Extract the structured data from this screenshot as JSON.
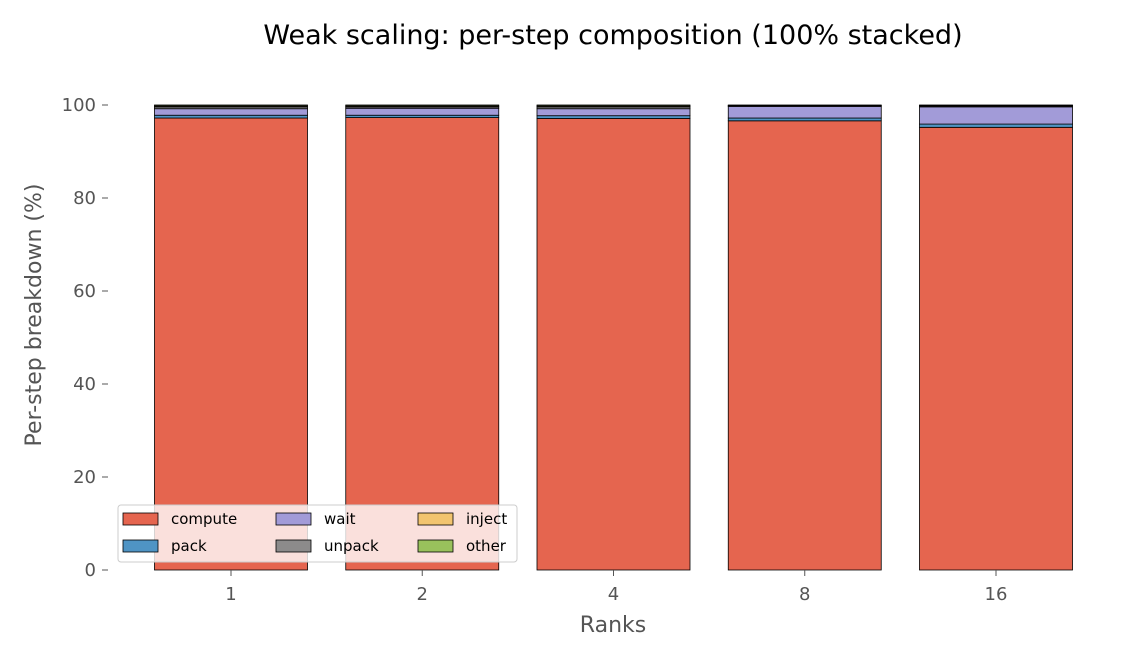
{
  "chart_data": {
    "type": "bar",
    "stacked": true,
    "normalized": true,
    "title": "Weak scaling: per-step composition (100% stacked)",
    "xlabel": "Ranks",
    "ylabel": "Per-step breakdown (%)",
    "ylim": [
      0,
      100
    ],
    "yticks": [
      0,
      20,
      40,
      60,
      80,
      100
    ],
    "grid": false,
    "legend_position": "lower-left",
    "categories": [
      "1",
      "2",
      "4",
      "8",
      "16"
    ],
    "series": [
      {
        "name": "compute",
        "color": "#e5654f",
        "values": [
          97.2,
          97.3,
          97.1,
          96.6,
          95.2
        ]
      },
      {
        "name": "pack",
        "color": "#4f94c4",
        "values": [
          0.6,
          0.5,
          0.6,
          0.6,
          0.7
        ]
      },
      {
        "name": "wait",
        "color": "#a29bd8",
        "values": [
          1.4,
          1.5,
          1.5,
          2.5,
          3.7
        ]
      },
      {
        "name": "unpack",
        "color": "#8c8b8b",
        "values": [
          0.4,
          0.3,
          0.4,
          0.1,
          0.2
        ]
      },
      {
        "name": "inject",
        "color": "#f2c46f",
        "values": [
          0.2,
          0.2,
          0.2,
          0.1,
          0.1
        ]
      },
      {
        "name": "other",
        "color": "#99c15c",
        "values": [
          0.2,
          0.2,
          0.2,
          0.1,
          0.1
        ]
      }
    ]
  }
}
